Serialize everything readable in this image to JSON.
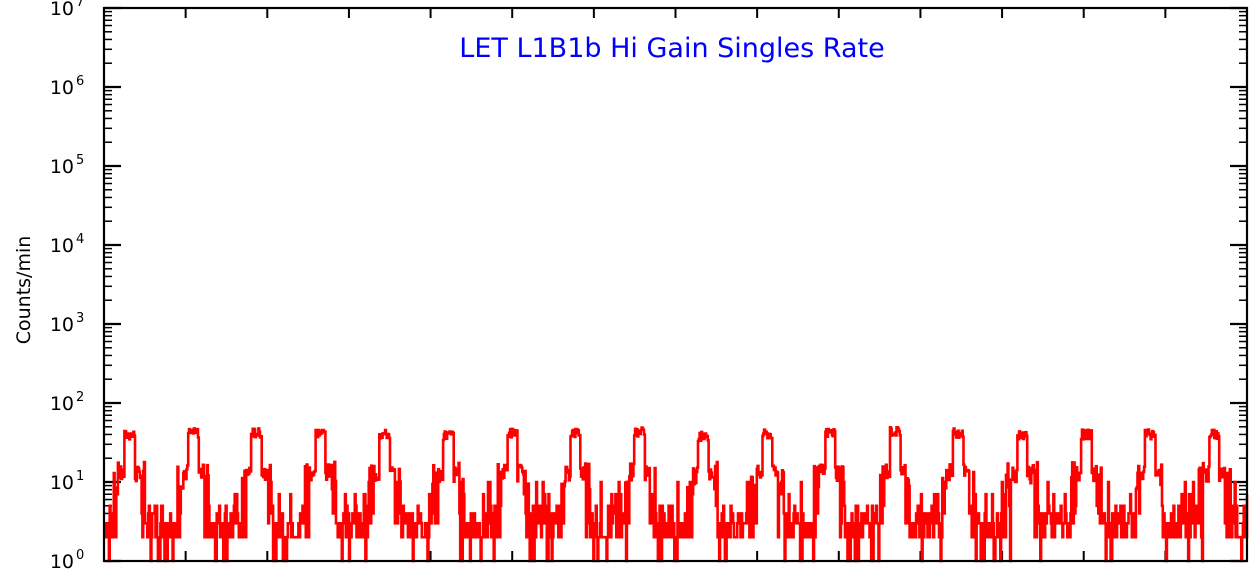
{
  "chart_data": {
    "type": "line",
    "title": "LET L1B1b Hi Gain Singles Rate",
    "title_color": "#0000ff",
    "series_color": "#ff0000",
    "ylabel": "Counts/min",
    "xlabel": "",
    "yscale": "log",
    "ylim": [
      1,
      10000000
    ],
    "xlim": [
      0,
      1
    ],
    "y_ticks": [
      {
        "base": "10",
        "exp": "0",
        "value": 1
      },
      {
        "base": "10",
        "exp": "1",
        "value": 10
      },
      {
        "base": "10",
        "exp": "2",
        "value": 100
      },
      {
        "base": "10",
        "exp": "3",
        "value": 1000
      },
      {
        "base": "10",
        "exp": "4",
        "value": 10000
      },
      {
        "base": "10",
        "exp": "5",
        "value": 100000
      },
      {
        "base": "10",
        "exp": "6",
        "value": 1000000
      },
      {
        "base": "10",
        "exp": "7",
        "value": 10000000
      }
    ],
    "series": [
      {
        "baseline_counts": 3,
        "peaks": [
          {
            "x": 0.022,
            "y": 45
          },
          {
            "x": 0.078,
            "y": 48
          },
          {
            "x": 0.133,
            "y": 48
          },
          {
            "x": 0.189,
            "y": 48
          },
          {
            "x": 0.245,
            "y": 46
          },
          {
            "x": 0.301,
            "y": 45
          },
          {
            "x": 0.357,
            "y": 48
          },
          {
            "x": 0.412,
            "y": 48
          },
          {
            "x": 0.468,
            "y": 50
          },
          {
            "x": 0.524,
            "y": 44
          },
          {
            "x": 0.58,
            "y": 46
          },
          {
            "x": 0.635,
            "y": 48
          },
          {
            "x": 0.692,
            "y": 50
          },
          {
            "x": 0.747,
            "y": 48
          },
          {
            "x": 0.803,
            "y": 46
          },
          {
            "x": 0.859,
            "y": 46
          },
          {
            "x": 0.915,
            "y": 46
          },
          {
            "x": 0.971,
            "y": 46
          }
        ]
      }
    ]
  }
}
